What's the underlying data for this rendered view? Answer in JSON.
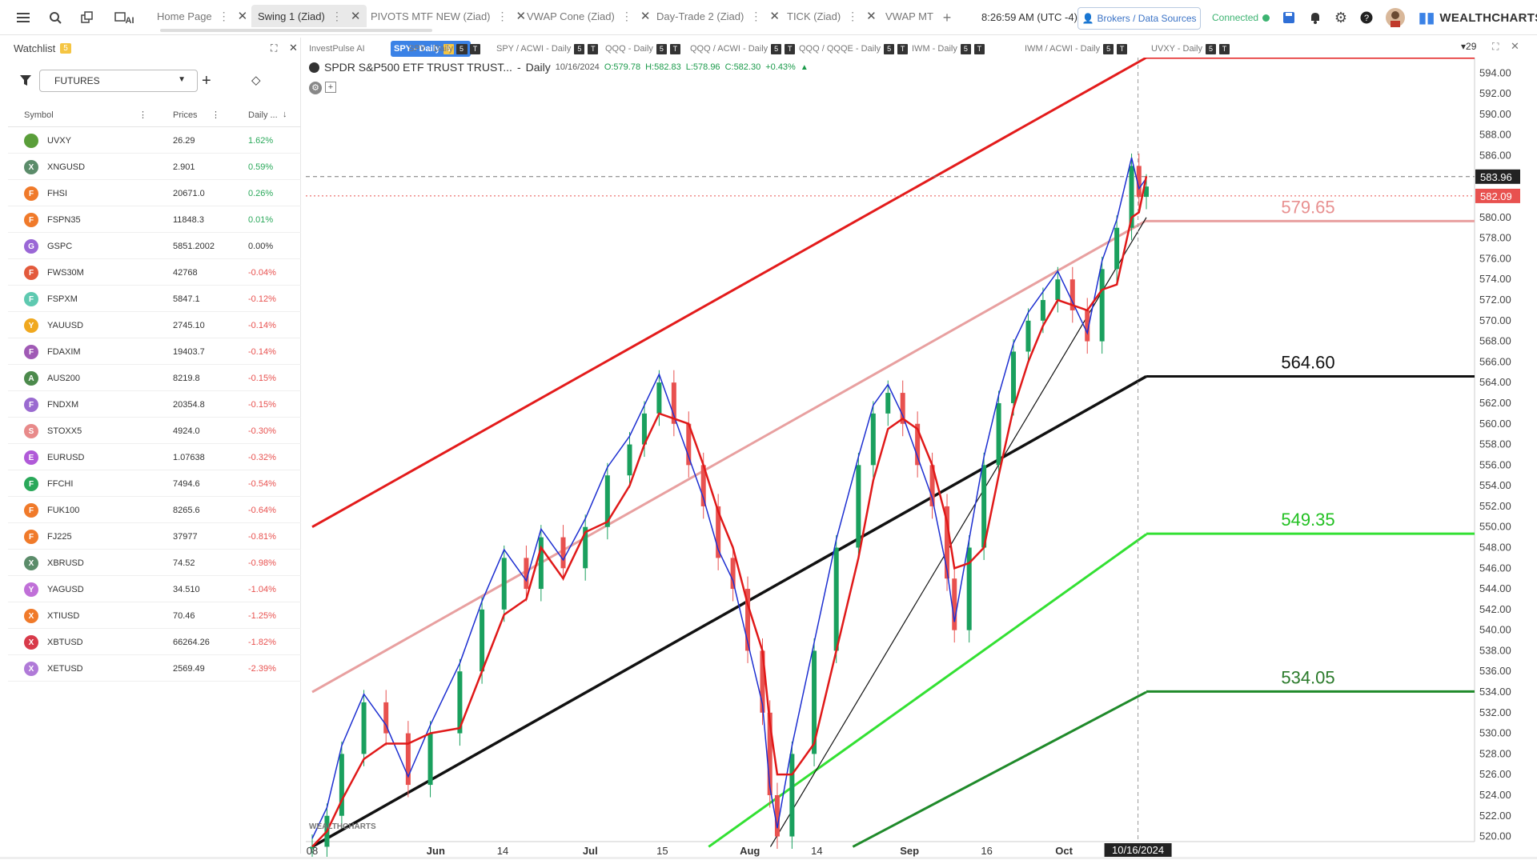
{
  "colors": {
    "accent": "#3b82e6",
    "up": "#1aa05e",
    "down": "#e8514f",
    "ema_blue": "#1d2fd1",
    "ema_red": "#e01919",
    "channel_red": "#e31b1b",
    "channel_pink": "#e8a0a0",
    "channel_black": "#111111",
    "channel_lime": "#33e033",
    "channel_green": "#1f8a2a",
    "connected": "#3cb371"
  },
  "topbar": {
    "menu_icon": "hamburger-icon",
    "search_icon": "search-icon",
    "tabs": [
      {
        "label": "Home Page",
        "active": false
      },
      {
        "label": "Swing 1 (Ziad)",
        "active": true
      },
      {
        "label": "PIVOTS MTF NEW (Ziad)",
        "active": false
      },
      {
        "label": "VWAP Cone (Ziad)",
        "active": false
      },
      {
        "label": "Day-Trade 2 (Ziad)",
        "active": false
      },
      {
        "label": "TICK (Ziad)",
        "active": false
      },
      {
        "label": "VWAP MT",
        "active": false
      }
    ],
    "clock": "8:26:59 AM  (UTC -4)",
    "brokers_label": "Brokers / Data Sources",
    "connected_label": "Connected",
    "brand": "WEALTHCHARTS",
    "ai_label": "AI"
  },
  "watchlist": {
    "title": "Watchlist",
    "badge": "5",
    "filter_value": "FUTURES",
    "col_symbol": "Symbol",
    "col_prices": "Prices",
    "col_daily": "Daily ...",
    "rows": [
      {
        "letter": "",
        "symbol": "UVXY",
        "price": "26.29",
        "change": "1.62%",
        "color": "#5a9e3a",
        "up": true
      },
      {
        "letter": "X",
        "symbol": "XNGUSD",
        "price": "2.901",
        "change": "0.59%",
        "color": "#5b8c6a",
        "up": true
      },
      {
        "letter": "F",
        "symbol": "FHSI",
        "price": "20671.0",
        "change": "0.26%",
        "color": "#f07a2a",
        "up": true
      },
      {
        "letter": "F",
        "symbol": "FSPN35",
        "price": "11848.3",
        "change": "0.01%",
        "color": "#f07a2a",
        "up": true
      },
      {
        "letter": "G",
        "symbol": "GSPC",
        "price": "5851.2002",
        "change": "0.00%",
        "color": "#9a67d6",
        "up": null
      },
      {
        "letter": "F",
        "symbol": "FWS30M",
        "price": "42768",
        "change": "-0.04%",
        "color": "#e35a3c",
        "up": false
      },
      {
        "letter": "F",
        "symbol": "FSPXM",
        "price": "5847.1",
        "change": "-0.12%",
        "color": "#5ec9b0",
        "up": false
      },
      {
        "letter": "Y",
        "symbol": "YAUUSD",
        "price": "2745.10",
        "change": "-0.14%",
        "color": "#f0a81e",
        "up": false
      },
      {
        "letter": "F",
        "symbol": "FDAXIM",
        "price": "19403.7",
        "change": "-0.14%",
        "color": "#a05ab5",
        "up": false
      },
      {
        "letter": "A",
        "symbol": "AUS200",
        "price": "8219.8",
        "change": "-0.15%",
        "color": "#4c8a4c",
        "up": false
      },
      {
        "letter": "F",
        "symbol": "FNDXM",
        "price": "20354.8",
        "change": "-0.15%",
        "color": "#9a6ad0",
        "up": false
      },
      {
        "letter": "S",
        "symbol": "STOXX5",
        "price": "4924.0",
        "change": "-0.30%",
        "color": "#e88a8a",
        "up": false
      },
      {
        "letter": "E",
        "symbol": "EURUSD",
        "price": "1.07638",
        "change": "-0.32%",
        "color": "#b05ad8",
        "up": false
      },
      {
        "letter": "F",
        "symbol": "FFCHI",
        "price": "7494.6",
        "change": "-0.54%",
        "color": "#2aa85a",
        "up": false
      },
      {
        "letter": "F",
        "symbol": "FUK100",
        "price": "8265.6",
        "change": "-0.64%",
        "color": "#f07a2a",
        "up": false
      },
      {
        "letter": "F",
        "symbol": "FJ225",
        "price": "37977",
        "change": "-0.81%",
        "color": "#f07a2a",
        "up": false
      },
      {
        "letter": "X",
        "symbol": "XBRUSD",
        "price": "74.52",
        "change": "-0.98%",
        "color": "#5b8c6a",
        "up": false
      },
      {
        "letter": "Y",
        "symbol": "YAGUSD",
        "price": "34.510",
        "change": "-1.04%",
        "color": "#c070d8",
        "up": false
      },
      {
        "letter": "X",
        "symbol": "XTIUSD",
        "price": "70.46",
        "change": "-1.25%",
        "color": "#f07a2a",
        "up": false
      },
      {
        "letter": "X",
        "symbol": "XBTUSD",
        "price": "66264.26",
        "change": "-1.82%",
        "color": "#d83a4a",
        "up": false
      },
      {
        "letter": "X",
        "symbol": "XETUSD",
        "price": "2569.49",
        "change": "-2.39%",
        "color": "#b07ad8",
        "up": false
      }
    ]
  },
  "chart_tabs": [
    {
      "label": "InvestPulse AI",
      "badges": []
    },
    {
      "label": "SPY - Daily",
      "badges": [
        "5",
        "T"
      ],
      "active": true
    },
    {
      "label": "SPY - Daily",
      "badges": [
        "5",
        "T"
      ]
    },
    {
      "label": "SPY / ACWI - Daily",
      "badges": [
        "5",
        "T"
      ]
    },
    {
      "label": "QQQ - Daily",
      "badges": [
        "5",
        "T"
      ]
    },
    {
      "label": "QQQ / ACWI - Daily",
      "badges": [
        "5",
        "T"
      ]
    },
    {
      "label": "QQQ / QQQE - Daily",
      "badges": [
        "5",
        "T"
      ]
    },
    {
      "label": "IWM - Daily",
      "badges": [
        "5",
        "T"
      ]
    },
    {
      "label": "IWM / ACWI - Daily",
      "badges": [
        "5",
        "T"
      ]
    },
    {
      "label": "UVXY - Daily",
      "badges": [
        "5",
        "T"
      ]
    }
  ],
  "chart_tabs_count": "29",
  "chart": {
    "title": "SPDR S&P500 ETF TRUST TRUST...",
    "interval": "Daily",
    "date": "10/16/2024",
    "o": "O:579.78",
    "h": "H:582.83",
    "l": "L:578.96",
    "c": "C:582.30",
    "chg": "+0.43%",
    "watermark": "WEALTHCHARTS",
    "crosshair_price": "583.96",
    "last_price": "582.09",
    "crosshair_date": "10/16/2024",
    "levels": [
      {
        "value": 579.65,
        "label": "579.65",
        "color": "#e8a0a0"
      },
      {
        "value": 564.6,
        "label": "564.60",
        "color": "#111111"
      },
      {
        "value": 549.35,
        "label": "549.35",
        "color": "#33e033"
      },
      {
        "value": 534.05,
        "label": "534.05",
        "color": "#1f8a2a"
      }
    ]
  },
  "chart_data": {
    "type": "line",
    "title": "SPDR S&P500 ETF TRUST TRUST...",
    "ylim": [
      519.5,
      595.5
    ],
    "y_ticks": [
      520,
      522,
      524,
      526,
      528,
      530,
      532,
      534,
      536,
      538,
      540,
      542,
      544,
      546,
      548,
      550,
      552,
      554,
      556,
      558,
      560,
      562,
      564,
      566,
      568,
      570,
      572,
      574,
      576,
      578,
      580,
      582,
      584,
      586,
      588,
      590,
      592,
      594
    ],
    "x_ticks": [
      "08",
      "Jun",
      "14",
      "Jul",
      "15",
      "Aug",
      "14",
      "Sep",
      "16",
      "Oct"
    ],
    "series": [
      {
        "name": "upper channel",
        "points": [
          [
            "2024-05-08",
            550
          ],
          [
            "2024-10-17",
            595.5
          ]
        ]
      },
      {
        "name": "mid channel",
        "points": [
          [
            "2024-05-08",
            534
          ],
          [
            "2024-10-17",
            579.7
          ]
        ]
      },
      {
        "name": "lower channel",
        "points": [
          [
            "2024-05-08",
            519
          ],
          [
            "2024-10-17",
            564.6
          ]
        ]
      },
      {
        "name": "lower 2",
        "points": [
          [
            "2024-07-24",
            519
          ],
          [
            "2024-10-17",
            549.3
          ]
        ]
      },
      {
        "name": "lower 3",
        "points": [
          [
            "2024-08-21",
            519
          ],
          [
            "2024-10-17",
            534
          ]
        ]
      },
      {
        "name": "trend line",
        "points": [
          [
            "2024-08-05",
            519
          ],
          [
            "2024-10-17",
            580
          ]
        ]
      }
    ]
  }
}
